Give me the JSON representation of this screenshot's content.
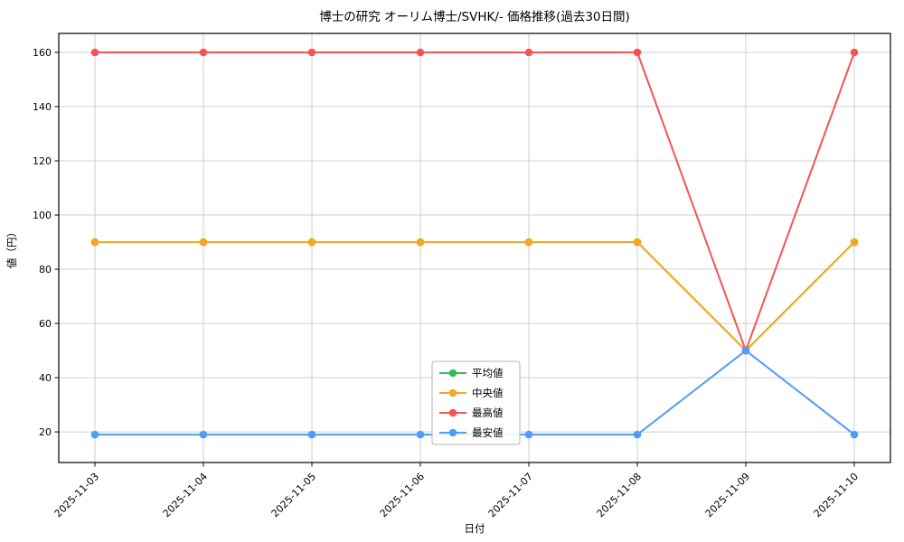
{
  "chart_data": {
    "type": "line",
    "title": "博士の研究 オーリム博士/SVHK/- 価格推移(過去30日間)",
    "xlabel": "日付",
    "ylabel": "値（円）",
    "categories": [
      "2025-11-03",
      "2025-11-04",
      "2025-11-05",
      "2025-11-06",
      "2025-11-07",
      "2025-11-08",
      "2025-11-09",
      "2025-11-10"
    ],
    "series": [
      {
        "name": "平均値",
        "color": "#2ebd59",
        "values": [
          90,
          90,
          90,
          90,
          90,
          90,
          50,
          90
        ]
      },
      {
        "name": "中央値",
        "color": "#f5a623",
        "values": [
          90,
          90,
          90,
          90,
          90,
          90,
          50,
          90
        ]
      },
      {
        "name": "最高値",
        "color": "#f65354",
        "values": [
          160,
          160,
          160,
          160,
          160,
          160,
          50,
          160
        ]
      },
      {
        "name": "最安値",
        "color": "#4f9df8",
        "values": [
          19,
          19,
          19,
          19,
          19,
          19,
          50,
          19
        ]
      }
    ],
    "yticks": [
      20,
      40,
      60,
      80,
      100,
      120,
      140,
      160
    ],
    "ylim": [
      8.7,
      167
    ],
    "grid": true,
    "legend_position": "lower center"
  },
  "colors": {
    "grid": "#cfcfcf",
    "axis": "#000000",
    "legend_border": "#b3b3b3",
    "background": "#ffffff"
  }
}
